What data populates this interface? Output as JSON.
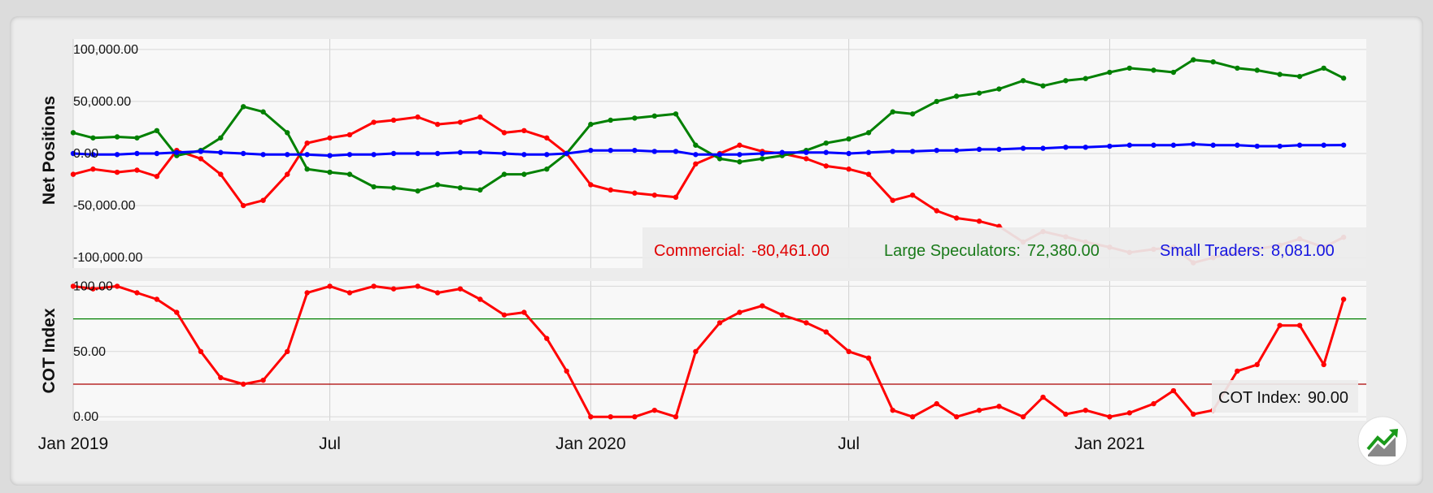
{
  "legend": {
    "commercial_label": "Commercial:",
    "commercial_value": "-80,461.00",
    "large_label": "Large Speculators:",
    "large_value": "72,380.00",
    "small_label": "Small Traders:",
    "small_value": "8,081.00",
    "cot_label": "COT Index:",
    "cot_value": "90.00"
  },
  "chart_data": [
    {
      "type": "line",
      "ylabel": "Net Positions",
      "ylim": [
        -110000,
        110000
      ],
      "yticks": [
        "100,000.00",
        "50,000.00",
        "0.00",
        "-50,000.00",
        "-100,000.00"
      ],
      "grid": true,
      "x_ticks": [
        "Jan 2019",
        "Jul",
        "Jan 2020",
        "Jul",
        "Jan 2021"
      ],
      "x": [
        "2019-01-01",
        "2019-01-15",
        "2019-02-01",
        "2019-02-15",
        "2019-03-01",
        "2019-03-15",
        "2019-04-01",
        "2019-04-15",
        "2019-05-01",
        "2019-05-15",
        "2019-06-01",
        "2019-06-15",
        "2019-07-01",
        "2019-07-15",
        "2019-08-01",
        "2019-08-15",
        "2019-09-01",
        "2019-09-15",
        "2019-10-01",
        "2019-10-15",
        "2019-11-01",
        "2019-11-15",
        "2019-12-01",
        "2019-12-15",
        "2020-01-01",
        "2020-01-15",
        "2020-02-01",
        "2020-02-15",
        "2020-03-01",
        "2020-03-15",
        "2020-04-01",
        "2020-04-15",
        "2020-05-01",
        "2020-05-15",
        "2020-06-01",
        "2020-06-15",
        "2020-07-01",
        "2020-07-15",
        "2020-08-01",
        "2020-08-15",
        "2020-09-01",
        "2020-09-15",
        "2020-10-01",
        "2020-10-15",
        "2020-11-01",
        "2020-11-15",
        "2020-12-01",
        "2020-12-15",
        "2021-01-01",
        "2021-01-15",
        "2021-02-01",
        "2021-02-15",
        "2021-03-01",
        "2021-03-15",
        "2021-04-01",
        "2021-04-15",
        "2021-05-01",
        "2021-05-15",
        "2021-06-01",
        "2021-06-15"
      ],
      "series": [
        {
          "name": "Commercial",
          "color": "#ff0000",
          "values": [
            -20000,
            -15000,
            -18000,
            -16000,
            -22000,
            3000,
            -5000,
            -20000,
            -50000,
            -45000,
            -20000,
            10000,
            15000,
            18000,
            30000,
            32000,
            35000,
            28000,
            30000,
            35000,
            20000,
            22000,
            15000,
            0,
            -30000,
            -35000,
            -38000,
            -40000,
            -42000,
            -10000,
            0,
            8000,
            2000,
            0,
            -5000,
            -12000,
            -15000,
            -20000,
            -45000,
            -40000,
            -55000,
            -62000,
            -65000,
            -70000,
            -85000,
            -75000,
            -80000,
            -85000,
            -90000,
            -95000,
            -92000,
            -90000,
            -105000,
            -100000,
            -95000,
            -92000,
            -88000,
            -82000,
            -90000,
            -80461
          ]
        },
        {
          "name": "Large Speculators",
          "color": "#008000",
          "values": [
            20000,
            15000,
            16000,
            15000,
            22000,
            -2000,
            3000,
            15000,
            45000,
            40000,
            20000,
            -15000,
            -18000,
            -20000,
            -32000,
            -33000,
            -36000,
            -30000,
            -33000,
            -35000,
            -20000,
            -20000,
            -15000,
            0,
            28000,
            32000,
            34000,
            36000,
            38000,
            8000,
            -5000,
            -8000,
            -5000,
            -2000,
            3000,
            10000,
            14000,
            20000,
            40000,
            38000,
            50000,
            55000,
            58000,
            62000,
            70000,
            65000,
            70000,
            72000,
            78000,
            82000,
            80000,
            78000,
            90000,
            88000,
            82000,
            80000,
            76000,
            74000,
            82000,
            72380
          ]
        },
        {
          "name": "Small Traders",
          "color": "#0000ff",
          "values": [
            0,
            -1000,
            -1000,
            0,
            0,
            1000,
            2000,
            1000,
            0,
            -1000,
            -1000,
            -1000,
            -2000,
            -1000,
            -1000,
            0,
            0,
            0,
            1000,
            1000,
            0,
            -1000,
            -1000,
            0,
            3000,
            3000,
            3000,
            2000,
            2000,
            -1000,
            -1000,
            -1000,
            0,
            1000,
            1000,
            1000,
            0,
            1000,
            2000,
            2000,
            3000,
            3000,
            4000,
            4000,
            5000,
            5000,
            6000,
            6000,
            7000,
            8000,
            8000,
            8000,
            9000,
            8000,
            8000,
            7000,
            7000,
            8000,
            8000,
            8081
          ]
        }
      ]
    },
    {
      "type": "line",
      "ylabel": "COT Index",
      "ylim": [
        -3,
        104
      ],
      "yticks": [
        "100.00",
        "50.00",
        "0.00"
      ],
      "reference_lines": [
        {
          "value": 75,
          "color": "#008000"
        },
        {
          "value": 25,
          "color": "#aa0000"
        }
      ],
      "grid": true,
      "x_ticks": [
        "Jan 2019",
        "Jul",
        "Jan 2020",
        "Jul",
        "Jan 2021"
      ],
      "x": [
        "2019-01-01",
        "2019-01-15",
        "2019-02-01",
        "2019-02-15",
        "2019-03-01",
        "2019-03-15",
        "2019-04-01",
        "2019-04-15",
        "2019-05-01",
        "2019-05-15",
        "2019-06-01",
        "2019-06-15",
        "2019-07-01",
        "2019-07-15",
        "2019-08-01",
        "2019-08-15",
        "2019-09-01",
        "2019-09-15",
        "2019-10-01",
        "2019-10-15",
        "2019-11-01",
        "2019-11-15",
        "2019-12-01",
        "2019-12-15",
        "2020-01-01",
        "2020-01-15",
        "2020-02-01",
        "2020-02-15",
        "2020-03-01",
        "2020-03-15",
        "2020-04-01",
        "2020-04-15",
        "2020-05-01",
        "2020-05-15",
        "2020-06-01",
        "2020-06-15",
        "2020-07-01",
        "2020-07-15",
        "2020-08-01",
        "2020-08-15",
        "2020-09-01",
        "2020-09-15",
        "2020-10-01",
        "2020-10-15",
        "2020-11-01",
        "2020-11-15",
        "2020-12-01",
        "2020-12-15",
        "2021-01-01",
        "2021-01-15",
        "2021-02-01",
        "2021-02-15",
        "2021-03-01",
        "2021-03-15",
        "2021-04-01",
        "2021-04-15",
        "2021-05-01",
        "2021-05-15",
        "2021-06-01",
        "2021-06-15"
      ],
      "series": [
        {
          "name": "COT Index",
          "color": "#ff0000",
          "values": [
            100,
            98,
            100,
            95,
            90,
            80,
            50,
            30,
            25,
            28,
            50,
            95,
            100,
            95,
            100,
            98,
            100,
            95,
            98,
            90,
            78,
            80,
            60,
            35,
            0,
            0,
            0,
            5,
            0,
            50,
            72,
            80,
            85,
            78,
            72,
            65,
            50,
            45,
            5,
            0,
            10,
            0,
            5,
            8,
            0,
            15,
            2,
            5,
            0,
            3,
            10,
            20,
            2,
            5,
            35,
            40,
            70,
            70,
            40,
            90
          ]
        }
      ]
    }
  ]
}
